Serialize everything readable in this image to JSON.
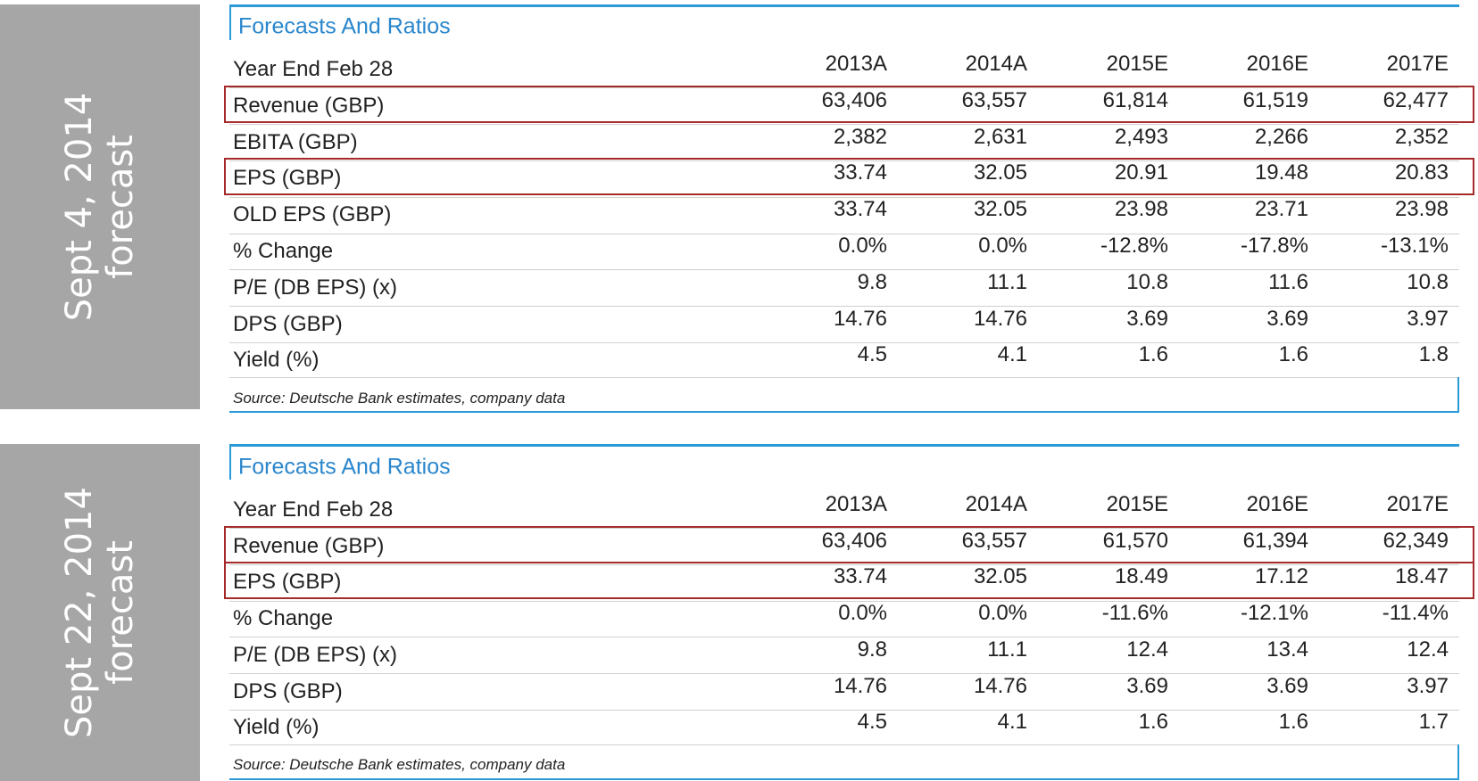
{
  "panels": [
    {
      "side_label": [
        "Sept 4, 2014",
        "forecast"
      ],
      "title": "Forecasts And Ratios",
      "header": [
        "Year End Feb 28",
        "2013A",
        "2014A",
        "2015E",
        "2016E",
        "2017E"
      ],
      "rows": [
        {
          "label": "Revenue (GBP)",
          "values": [
            "63,406",
            "63,557",
            "61,814",
            "61,519",
            "62,477"
          ],
          "highlighted": true
        },
        {
          "label": "EBITA (GBP)",
          "values": [
            "2,382",
            "2,631",
            "2,493",
            "2,266",
            "2,352"
          ],
          "highlighted": false
        },
        {
          "label": "EPS (GBP)",
          "values": [
            "33.74",
            "32.05",
            "20.91",
            "19.48",
            "20.83"
          ],
          "highlighted": true
        },
        {
          "label": "OLD EPS (GBP)",
          "values": [
            "33.74",
            "32.05",
            "23.98",
            "23.71",
            "23.98"
          ],
          "highlighted": false
        },
        {
          "label": "% Change",
          "values": [
            "0.0%",
            "0.0%",
            "-12.8%",
            "-17.8%",
            "-13.1%"
          ],
          "highlighted": false
        },
        {
          "label": "P/E (DB EPS) (x)",
          "values": [
            "9.8",
            "11.1",
            "10.8",
            "11.6",
            "10.8"
          ],
          "highlighted": false
        },
        {
          "label": "DPS (GBP)",
          "values": [
            "14.76",
            "14.76",
            "3.69",
            "3.69",
            "3.97"
          ],
          "highlighted": false
        },
        {
          "label": "Yield (%)",
          "values": [
            "4.5",
            "4.1",
            "1.6",
            "1.6",
            "1.8"
          ],
          "highlighted": false
        }
      ],
      "source": "Source: Deutsche Bank estimates, company data"
    },
    {
      "side_label": [
        "Sept 22, 2014",
        "forecast"
      ],
      "title": "Forecasts And Ratios",
      "header": [
        "Year End Feb 28",
        "2013A",
        "2014A",
        "2015E",
        "2016E",
        "2017E"
      ],
      "rows": [
        {
          "label": "Revenue (GBP)",
          "values": [
            "63,406",
            "63,557",
            "61,570",
            "61,394",
            "62,349"
          ],
          "highlighted": true
        },
        {
          "label": "EPS (GBP)",
          "values": [
            "33.74",
            "32.05",
            "18.49",
            "17.12",
            "18.47"
          ],
          "highlighted": true
        },
        {
          "label": "% Change",
          "values": [
            "0.0%",
            "0.0%",
            "-11.6%",
            "-12.1%",
            "-11.4%"
          ],
          "highlighted": false
        },
        {
          "label": "P/E (DB EPS) (x)",
          "values": [
            "9.8",
            "11.1",
            "12.4",
            "13.4",
            "12.4"
          ],
          "highlighted": false
        },
        {
          "label": "DPS (GBP)",
          "values": [
            "14.76",
            "14.76",
            "3.69",
            "3.69",
            "3.97"
          ],
          "highlighted": false
        },
        {
          "label": "Yield (%)",
          "values": [
            "4.5",
            "4.1",
            "1.6",
            "1.6",
            "1.7"
          ],
          "highlighted": false
        }
      ],
      "source": "Source: Deutsche Bank estimates, company data"
    }
  ]
}
